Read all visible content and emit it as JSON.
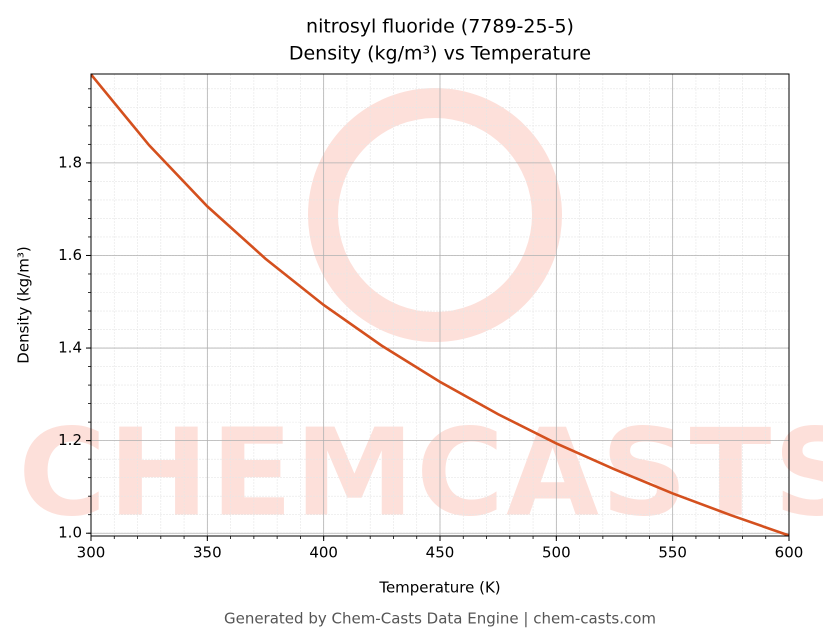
{
  "chart_data": {
    "type": "line",
    "title": "nitrosyl fluoride (7789-25-5)",
    "subtitle": "Density (kg/m³) vs Temperature",
    "x_label": "Temperature (K)",
    "y_label": "Density (kg/m³)",
    "watermark": "CHEMCASTS",
    "footer": "Generated by Chem-Casts Data Engine | chem-casts.com",
    "x": [
      300,
      325,
      350,
      375,
      400,
      425,
      450,
      475,
      500,
      525,
      550,
      575,
      600
    ],
    "series": [
      {
        "name": "Density",
        "color": "#d4501e",
        "values": [
          1.991,
          1.838,
          1.706,
          1.593,
          1.493,
          1.405,
          1.327,
          1.257,
          1.194,
          1.138,
          1.086,
          1.039,
          0.995
        ]
      }
    ],
    "xlim": [
      300,
      600
    ],
    "ylim": [
      0.994,
      1.992
    ],
    "xticks": [
      300,
      350,
      400,
      450,
      500,
      550,
      600
    ],
    "yticks": [
      {
        "value": 1.0,
        "label": "1.0"
      },
      1.2,
      1.4,
      1.6,
      1.8
    ],
    "grid": true,
    "minor_grid": true
  }
}
